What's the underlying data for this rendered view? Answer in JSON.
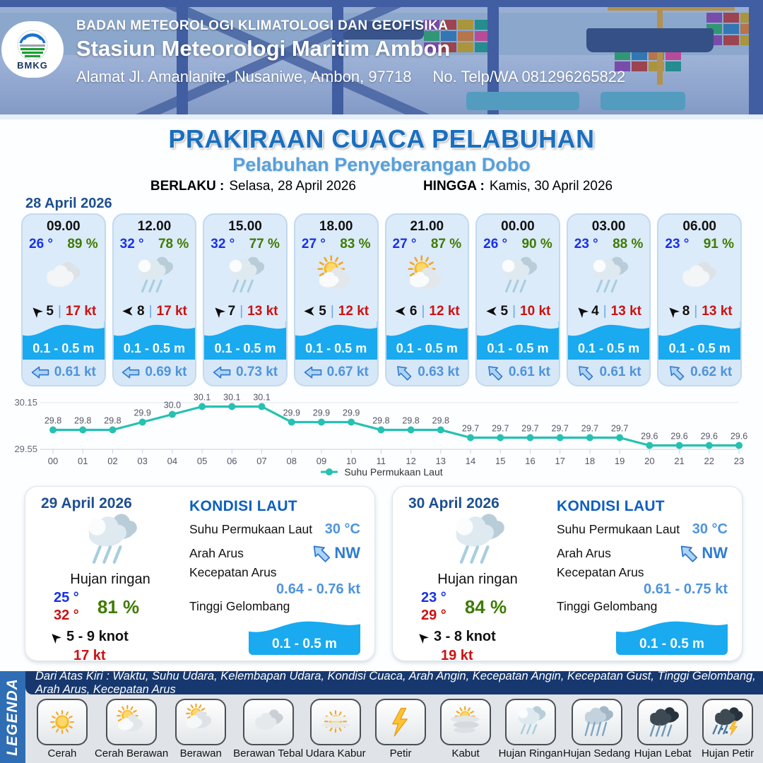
{
  "header": {
    "logo_text": "BMKG",
    "agency": "BADAN METEOROLOGI KLIMATOLOGI DAN GEOFISIKA",
    "station": "Stasiun Meteorologi Maritim Ambon",
    "address": "Alamat Jl. Amanlanite, Nusaniwe, Ambon, 97718",
    "phone": "No. Telp/WA  081296265822"
  },
  "title": {
    "main": "PRAKIRAAN CUACA PELABUHAN",
    "subtitle": "Pelabuhan Penyeberangan Dobo",
    "berlaku_label": "BERLAKU :",
    "berlaku_value": "Selasa, 28 April 2026",
    "hingga_label": "HINGGA :",
    "hingga_value": "Kamis, 30 April 2026"
  },
  "forecast_date": "28 April 2026",
  "hourly_cards": [
    {
      "time": "09.00",
      "temp": "26 °",
      "humidity": "89 %",
      "icon": "berawan",
      "wind_dir": "NW",
      "wind_speed": "5",
      "gust": "17 kt",
      "wave": "0.1 - 0.5 m",
      "current_dir": "W",
      "current": "0.61 kt"
    },
    {
      "time": "12.00",
      "temp": "32 °",
      "humidity": "78 %",
      "icon": "hujan-ringan",
      "wind_dir": "W",
      "wind_speed": "8",
      "gust": "17 kt",
      "wave": "0.1 - 0.5 m",
      "current_dir": "W",
      "current": "0.69 kt"
    },
    {
      "time": "15.00",
      "temp": "32 °",
      "humidity": "77 %",
      "icon": "hujan-ringan",
      "wind_dir": "NW",
      "wind_speed": "7",
      "gust": "13 kt",
      "wave": "0.1 - 0.5 m",
      "current_dir": "W",
      "current": "0.73 kt"
    },
    {
      "time": "18.00",
      "temp": "27 °",
      "humidity": "83 %",
      "icon": "cerah-berawan",
      "wind_dir": "W",
      "wind_speed": "5",
      "gust": "12 kt",
      "wave": "0.1 - 0.5 m",
      "current_dir": "W",
      "current": "0.67 kt"
    },
    {
      "time": "21.00",
      "temp": "27 °",
      "humidity": "87 %",
      "icon": "cerah-berawan",
      "wind_dir": "W",
      "wind_speed": "6",
      "gust": "12 kt",
      "wave": "0.1 - 0.5 m",
      "current_dir": "NW",
      "current": "0.63 kt"
    },
    {
      "time": "00.00",
      "temp": "26 °",
      "humidity": "90 %",
      "icon": "hujan-ringan",
      "wind_dir": "W",
      "wind_speed": "5",
      "gust": "10 kt",
      "wave": "0.1 - 0.5 m",
      "current_dir": "NW",
      "current": "0.61 kt"
    },
    {
      "time": "03.00",
      "temp": "23 °",
      "humidity": "88 %",
      "icon": "hujan-ringan",
      "wind_dir": "NW",
      "wind_speed": "4",
      "gust": "13 kt",
      "wave": "0.1 - 0.5 m",
      "current_dir": "NW",
      "current": "0.61 kt"
    },
    {
      "time": "06.00",
      "temp": "23 °",
      "humidity": "91 %",
      "icon": "berawan",
      "wind_dir": "NW",
      "wind_speed": "8",
      "gust": "13 kt",
      "wave": "0.1 - 0.5 m",
      "current_dir": "NW",
      "current": "0.62 kt"
    }
  ],
  "chart_data": {
    "type": "line",
    "x": [
      "00",
      "01",
      "02",
      "03",
      "04",
      "05",
      "06",
      "07",
      "08",
      "09",
      "10",
      "11",
      "12",
      "13",
      "14",
      "15",
      "16",
      "17",
      "18",
      "19",
      "20",
      "21",
      "22",
      "23"
    ],
    "series": [
      {
        "name": "Suhu Permukaan Laut",
        "values": [
          29.8,
          29.8,
          29.8,
          29.9,
          30.0,
          30.1,
          30.1,
          30.1,
          29.9,
          29.9,
          29.9,
          29.8,
          29.8,
          29.8,
          29.7,
          29.7,
          29.7,
          29.7,
          29.7,
          29.7,
          29.6,
          29.6,
          29.6,
          29.6
        ]
      }
    ],
    "ylim": [
      29.55,
      30.15
    ],
    "yticks": [
      "30.15",
      "29.55"
    ],
    "line_color": "#25c1b2",
    "grid": true,
    "legend_position": "bottom"
  },
  "daily_cards": [
    {
      "date": "29 April 2026",
      "icon": "hujan-ringan",
      "condition": "Hujan ringan",
      "temp_min": "25 °",
      "temp_max": "32 °",
      "humidity": "81 %",
      "wind_dir": "NW",
      "wind": "5  - 9 knot",
      "gust": "17 kt",
      "sea": {
        "heading": "KONDISI LAUT",
        "sst_label": "Suhu Permukaan Laut",
        "sst": "30 °C",
        "current_dir_label": "Arah Arus",
        "current_dir": "NW",
        "current_speed_label": "Kecepatan Arus",
        "current_speed": "0.64 - 0.76 kt",
        "wave_label": "Tinggi Gelombang",
        "wave": "0.1 - 0.5 m"
      }
    },
    {
      "date": "30 April 2026",
      "icon": "hujan-ringan",
      "condition": "Hujan ringan",
      "temp_min": "23 °",
      "temp_max": "29 °",
      "humidity": "84 %",
      "wind_dir": "NW",
      "wind": "3  - 8 knot",
      "gust": "19 kt",
      "sea": {
        "heading": "KONDISI LAUT",
        "sst_label": "Suhu Permukaan Laut",
        "sst": "30 °C",
        "current_dir_label": "Arah Arus",
        "current_dir": "NW",
        "current_speed_label": "Kecepatan Arus",
        "current_speed": "0.61 - 0.75 kt",
        "wave_label": "Tinggi Gelombang",
        "wave": "0.1 - 0.5 m"
      }
    }
  ],
  "legend": {
    "vertical_label": "LEGENDA",
    "header": "Dari Atas Kiri : Waktu, Suhu Udara, Kelembapan Udara, Kondisi Cuaca, Arah Angin, Kecepatan Angin, Kecepatan Gust, Tinggi Gelombang, Arah Arus, Kecepatan Arus",
    "items": [
      {
        "label": "Cerah",
        "icon": "cerah"
      },
      {
        "label": "Cerah Berawan",
        "icon": "cerah-berawan"
      },
      {
        "label": "Berawan",
        "icon": "berawan-sun"
      },
      {
        "label": "Berawan Tebal",
        "icon": "berawan-tebal"
      },
      {
        "label": "Udara Kabur",
        "icon": "udara-kabur"
      },
      {
        "label": "Petir",
        "icon": "petir"
      },
      {
        "label": "Kabut",
        "icon": "kabut"
      },
      {
        "label": "Hujan Ringan",
        "icon": "hujan-ringan"
      },
      {
        "label": "Hujan Sedang",
        "icon": "hujan-sedang"
      },
      {
        "label": "Hujan Lebat",
        "icon": "hujan-lebat"
      },
      {
        "label": "Hujan Petir",
        "icon": "hujan-petir"
      }
    ]
  },
  "colors": {
    "title_blue": "#1a6fc0",
    "subtitle_blue": "#55a0dd",
    "temp_blue": "#1731e8",
    "humidity_green": "#3e7c00",
    "gust_red": "#cc1111",
    "wave_band_blue": "#19aaf0",
    "current_blue": "#4e94dc",
    "chart_teal": "#25c1b2",
    "legend_navy": "#17386e",
    "legend_band_blue": "#2f6db4"
  }
}
